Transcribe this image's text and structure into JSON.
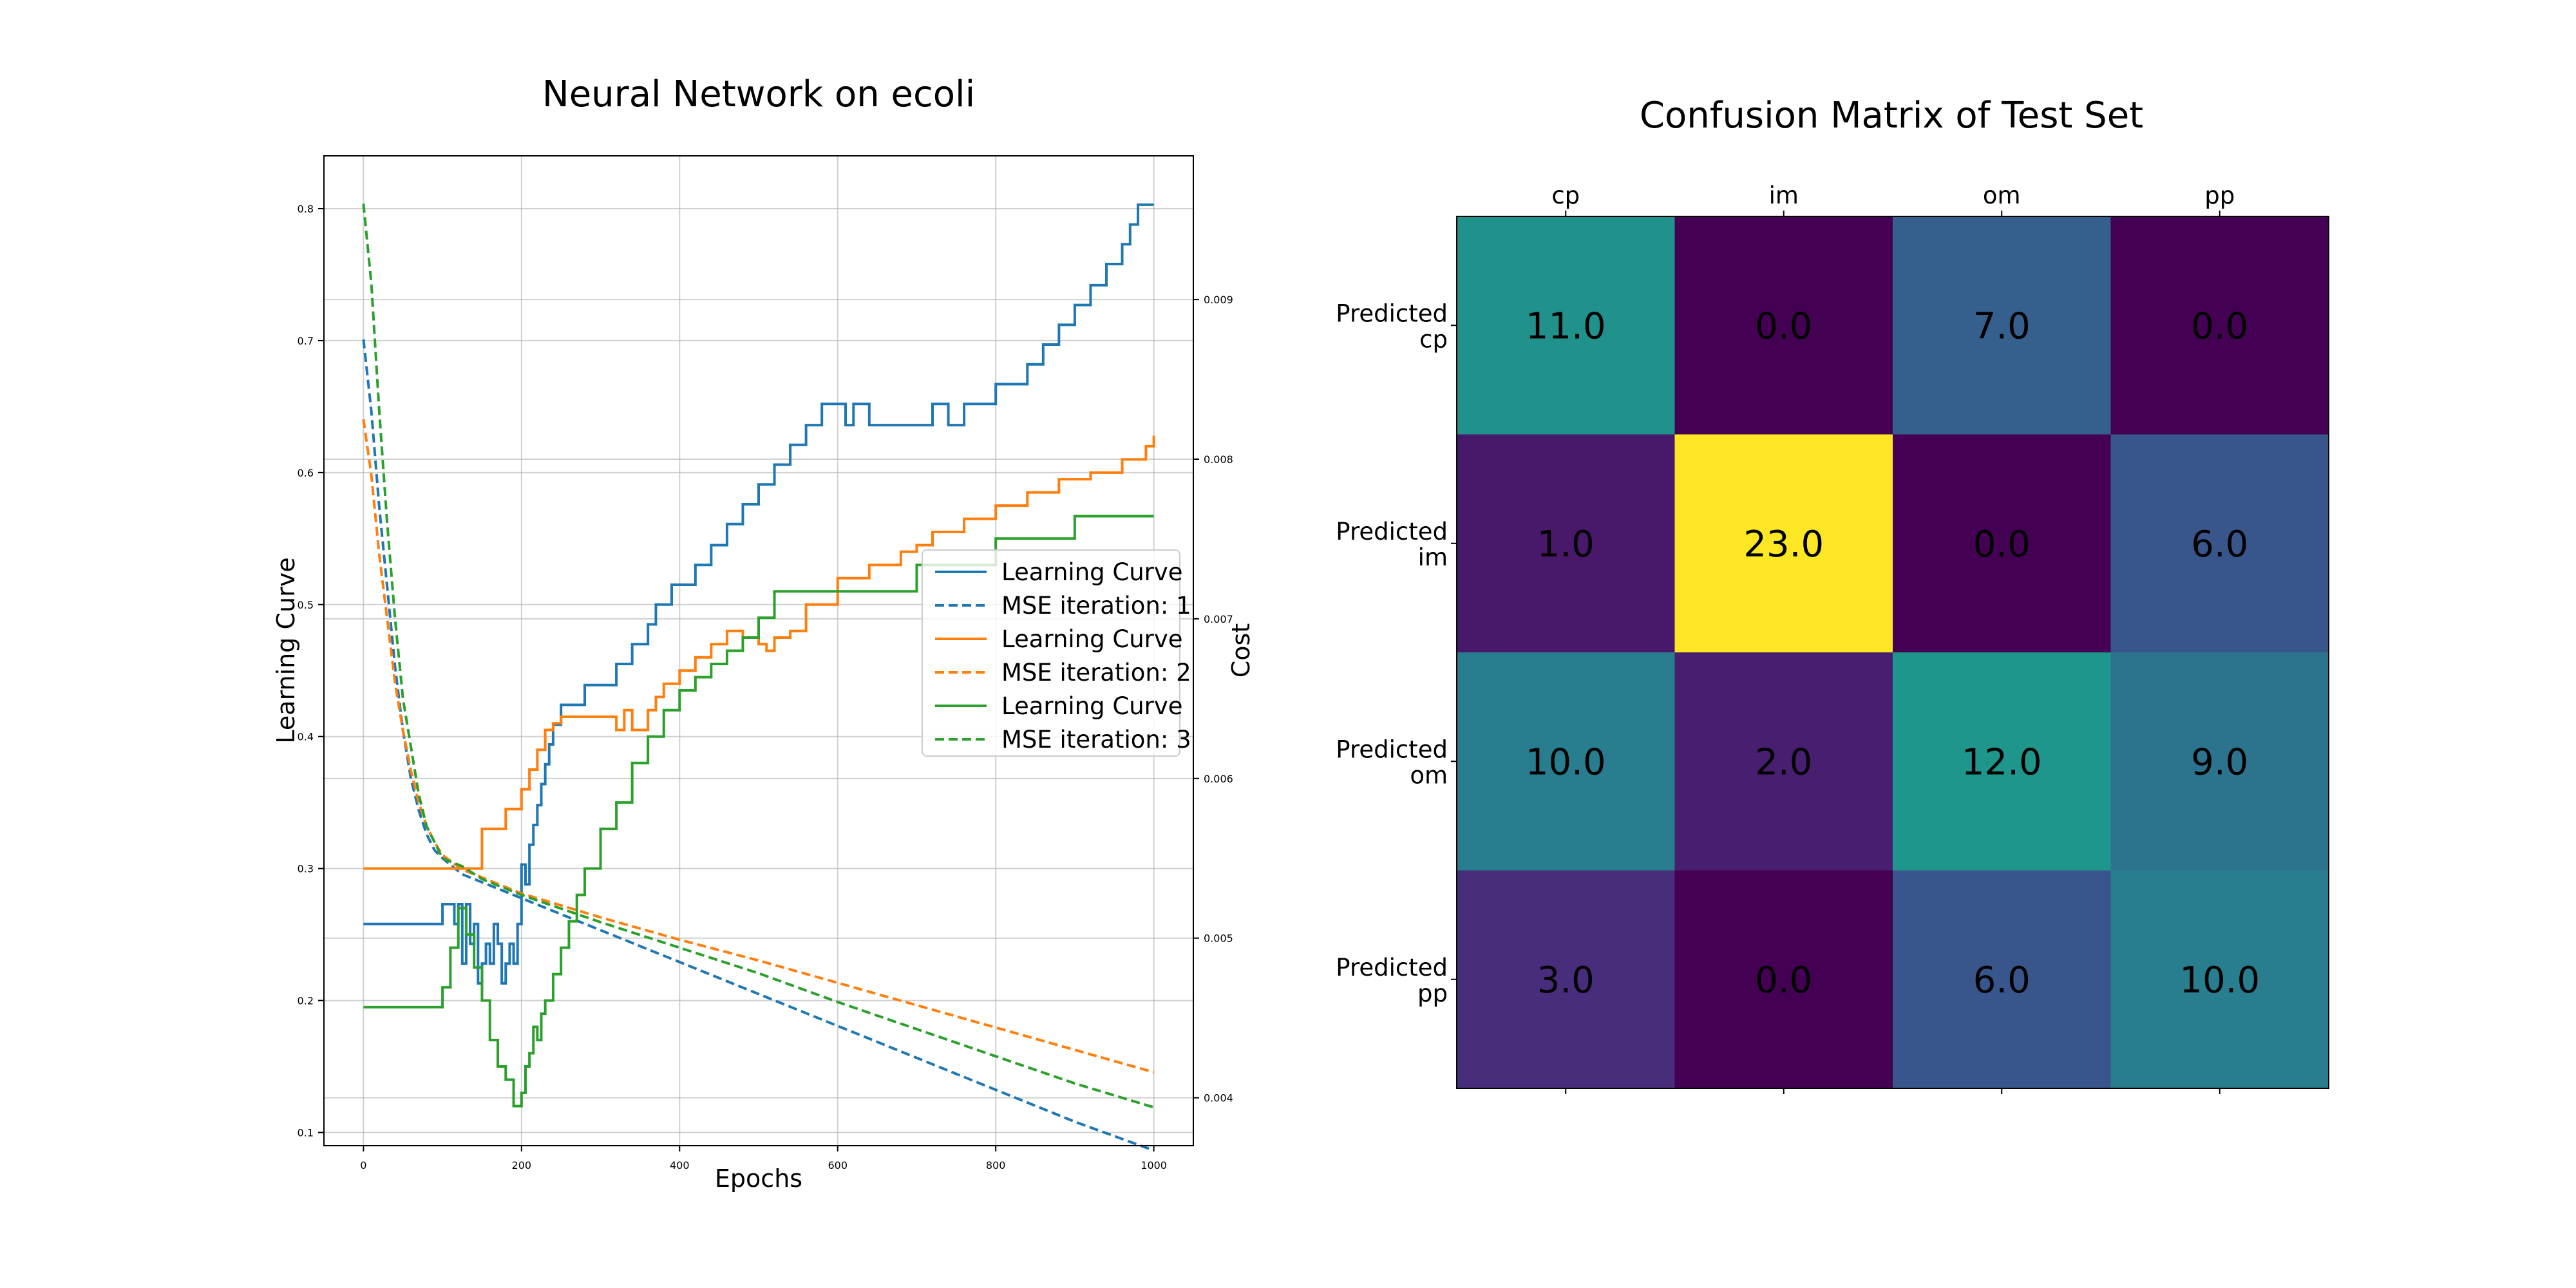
{
  "chart_data": [
    {
      "type": "line",
      "title": "Neural Network on ecoli",
      "xlabel": "Epochs",
      "ylabel": "Learning Curve",
      "ylabel_right": "Cost",
      "xlim": [
        -50,
        1050
      ],
      "ylim": [
        0.09,
        0.84
      ],
      "ylim_right": [
        0.0037,
        0.0099
      ],
      "xticks": [
        0,
        200,
        400,
        600,
        800,
        1000
      ],
      "yticks": [
        0.1,
        0.2,
        0.3,
        0.4,
        0.5,
        0.6,
        0.7,
        0.8
      ],
      "yticks_right": [
        0.004,
        0.005,
        0.006,
        0.007,
        0.008,
        0.009
      ],
      "grid": true,
      "legend_position": "center-right",
      "series": [
        {
          "name": "Learning Curve",
          "axis": "left",
          "style": "solid",
          "color": "#1f77b4",
          "x": [
            0,
            90,
            100,
            110,
            115,
            120,
            125,
            130,
            135,
            140,
            145,
            150,
            155,
            160,
            165,
            170,
            175,
            180,
            185,
            190,
            195,
            200,
            205,
            210,
            215,
            220,
            225,
            230,
            235,
            240,
            250,
            260,
            280,
            300,
            320,
            340,
            360,
            370,
            380,
            390,
            400,
            420,
            440,
            460,
            480,
            500,
            520,
            540,
            560,
            580,
            600,
            610,
            620,
            640,
            680,
            720,
            740,
            760,
            800,
            840,
            860,
            880,
            900,
            920,
            940,
            960,
            970,
            980,
            1000
          ],
          "y": [
            0.258,
            0.258,
            0.273,
            0.273,
            0.258,
            0.273,
            0.228,
            0.273,
            0.243,
            0.258,
            0.213,
            0.228,
            0.243,
            0.228,
            0.258,
            0.243,
            0.213,
            0.228,
            0.243,
            0.228,
            0.258,
            0.303,
            0.288,
            0.318,
            0.333,
            0.348,
            0.364,
            0.379,
            0.394,
            0.409,
            0.424,
            0.424,
            0.439,
            0.439,
            0.455,
            0.47,
            0.485,
            0.5,
            0.5,
            0.515,
            0.515,
            0.53,
            0.545,
            0.561,
            0.576,
            0.591,
            0.606,
            0.621,
            0.636,
            0.652,
            0.652,
            0.636,
            0.652,
            0.636,
            0.636,
            0.652,
            0.636,
            0.652,
            0.667,
            0.682,
            0.697,
            0.712,
            0.727,
            0.742,
            0.758,
            0.773,
            0.788,
            0.803,
            0.803
          ]
        },
        {
          "name": "MSE iteration: 1",
          "axis": "right",
          "style": "dashed",
          "color": "#1f77b4",
          "x": [
            0,
            10,
            20,
            30,
            40,
            50,
            60,
            70,
            80,
            90,
            100,
            125,
            150,
            200,
            300,
            400,
            500,
            600,
            700,
            800,
            900,
            1000
          ],
          "y": [
            0.00875,
            0.0083,
            0.0077,
            0.0072,
            0.0067,
            0.0063,
            0.006,
            0.0058,
            0.00565,
            0.00555,
            0.0055,
            0.0054,
            0.00535,
            0.00525,
            0.00505,
            0.00485,
            0.00465,
            0.00445,
            0.00425,
            0.00405,
            0.00385,
            0.00367
          ]
        },
        {
          "name": "Learning Curve",
          "axis": "left",
          "style": "solid",
          "color": "#ff7f0e",
          "x": [
            0,
            90,
            150,
            180,
            200,
            210,
            220,
            230,
            240,
            250,
            300,
            320,
            330,
            340,
            360,
            370,
            380,
            400,
            420,
            440,
            460,
            480,
            500,
            510,
            520,
            540,
            560,
            600,
            640,
            680,
            700,
            720,
            760,
            800,
            840,
            880,
            920,
            960,
            990,
            1000
          ],
          "y": [
            0.3,
            0.3,
            0.33,
            0.345,
            0.36,
            0.375,
            0.39,
            0.405,
            0.41,
            0.415,
            0.415,
            0.405,
            0.42,
            0.405,
            0.42,
            0.43,
            0.44,
            0.45,
            0.46,
            0.47,
            0.48,
            0.475,
            0.47,
            0.465,
            0.475,
            0.48,
            0.5,
            0.52,
            0.53,
            0.54,
            0.545,
            0.555,
            0.565,
            0.575,
            0.585,
            0.595,
            0.6,
            0.61,
            0.62,
            0.628
          ]
        },
        {
          "name": "MSE iteration: 2",
          "axis": "right",
          "style": "dashed",
          "color": "#ff7f0e",
          "x": [
            0,
            10,
            20,
            30,
            40,
            50,
            60,
            70,
            80,
            90,
            100,
            125,
            150,
            200,
            300,
            400,
            500,
            600,
            700,
            800,
            900,
            1000
          ],
          "y": [
            0.00825,
            0.0079,
            0.0074,
            0.007,
            0.0066,
            0.0063,
            0.00605,
            0.00585,
            0.0057,
            0.0056,
            0.00552,
            0.00543,
            0.00538,
            0.00528,
            0.00513,
            0.00499,
            0.00486,
            0.00472,
            0.00458,
            0.00444,
            0.0043,
            0.00416
          ]
        },
        {
          "name": "Learning Curve",
          "axis": "left",
          "style": "solid",
          "color": "#2ca02c",
          "x": [
            0,
            90,
            100,
            110,
            120,
            130,
            140,
            150,
            160,
            170,
            180,
            190,
            200,
            205,
            210,
            215,
            220,
            225,
            230,
            240,
            250,
            260,
            270,
            280,
            300,
            320,
            340,
            360,
            380,
            400,
            420,
            440,
            460,
            480,
            500,
            520,
            540,
            600,
            700,
            800,
            900,
            1000
          ],
          "y": [
            0.195,
            0.195,
            0.21,
            0.24,
            0.27,
            0.25,
            0.225,
            0.2,
            0.17,
            0.15,
            0.14,
            0.12,
            0.13,
            0.15,
            0.16,
            0.18,
            0.17,
            0.19,
            0.2,
            0.22,
            0.24,
            0.26,
            0.28,
            0.3,
            0.33,
            0.35,
            0.38,
            0.4,
            0.42,
            0.435,
            0.445,
            0.455,
            0.465,
            0.475,
            0.49,
            0.51,
            0.51,
            0.51,
            0.53,
            0.55,
            0.567,
            0.567
          ]
        },
        {
          "name": "MSE iteration: 3",
          "axis": "right",
          "style": "dashed",
          "color": "#2ca02c",
          "x": [
            0,
            10,
            20,
            30,
            40,
            50,
            60,
            70,
            80,
            90,
            100,
            125,
            150,
            200,
            300,
            400,
            500,
            600,
            700,
            800,
            900,
            1000
          ],
          "y": [
            0.0096,
            0.0091,
            0.0083,
            0.0076,
            0.007,
            0.0065,
            0.0062,
            0.0059,
            0.0057,
            0.0056,
            0.0055,
            0.00545,
            0.00537,
            0.00527,
            0.0051,
            0.00494,
            0.00478,
            0.0046,
            0.00443,
            0.00426,
            0.00409,
            0.00394
          ]
        }
      ],
      "legend": [
        {
          "label": "Learning Curve",
          "color": "#1f77b4",
          "style": "solid"
        },
        {
          "label": "MSE iteration: 1",
          "color": "#1f77b4",
          "style": "dashed"
        },
        {
          "label": "Learning Curve",
          "color": "#ff7f0e",
          "style": "solid"
        },
        {
          "label": "MSE iteration: 2",
          "color": "#ff7f0e",
          "style": "dashed"
        },
        {
          "label": "Learning Curve",
          "color": "#2ca02c",
          "style": "solid"
        },
        {
          "label": "MSE iteration: 3",
          "color": "#2ca02c",
          "style": "dashed"
        }
      ]
    },
    {
      "type": "heatmap",
      "title": "Confusion Matrix of Test Set",
      "columns": [
        "cp",
        "im",
        "om",
        "pp"
      ],
      "rows": [
        "Predicted\ncp",
        "Predicted\nim",
        "Predicted\nom",
        "Predicted\npp"
      ],
      "cells": [
        {
          "label": "11.0",
          "color": "#21918c"
        },
        {
          "label": "0.0",
          "color": "#440154"
        },
        {
          "label": "7.0",
          "color": "#355f8d"
        },
        {
          "label": "0.0",
          "color": "#440154"
        },
        {
          "label": "1.0",
          "color": "#48186a"
        },
        {
          "label": "23.0",
          "color": "#fde725"
        },
        {
          "label": "0.0",
          "color": "#440154"
        },
        {
          "label": "6.0",
          "color": "#39568c"
        },
        {
          "label": "10.0",
          "color": "#287d8e"
        },
        {
          "label": "2.0",
          "color": "#481f70"
        },
        {
          "label": "12.0",
          "color": "#1f968b"
        },
        {
          "label": "9.0",
          "color": "#2c738e"
        },
        {
          "label": "3.0",
          "color": "#472d7b"
        },
        {
          "label": "0.0",
          "color": "#440154"
        },
        {
          "label": "6.0",
          "color": "#39568c"
        },
        {
          "label": "10.0",
          "color": "#287d8e"
        }
      ]
    }
  ]
}
